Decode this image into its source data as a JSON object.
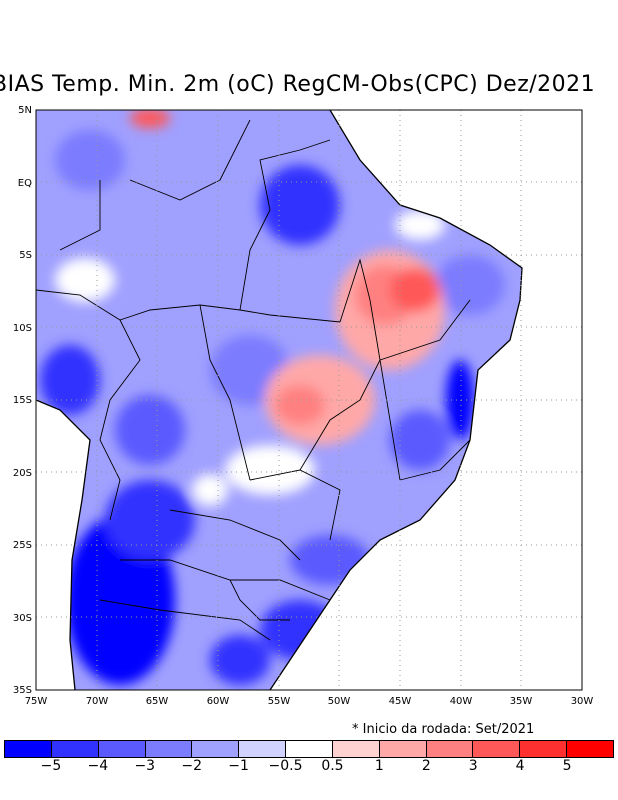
{
  "title": "BIAS Temp. Min. 2m (oC) RegCM-Obs(CPC) Dez/2021",
  "note": "* Inicio da rodada: Set/2021",
  "y_ticks": [
    "5N",
    "EQ",
    "5S",
    "10S",
    "15S",
    "20S",
    "25S",
    "30S",
    "35S"
  ],
  "x_ticks": [
    "75W",
    "70W",
    "65W",
    "60W",
    "55W",
    "50W",
    "45W",
    "40W",
    "35W",
    "30W"
  ],
  "colorbar": {
    "colors": [
      "#0000ff",
      "#3232ff",
      "#5a5aff",
      "#7c7cff",
      "#a0a0ff",
      "#d2d2ff",
      "#ffffff",
      "#ffd2d2",
      "#ffa8a8",
      "#ff8080",
      "#ff5858",
      "#ff3030",
      "#ff0000"
    ],
    "labels": [
      "−5",
      "−4",
      "−3",
      "−2",
      "−1",
      "−0.5",
      "0.5",
      "1",
      "2",
      "3",
      "4",
      "5"
    ]
  }
}
